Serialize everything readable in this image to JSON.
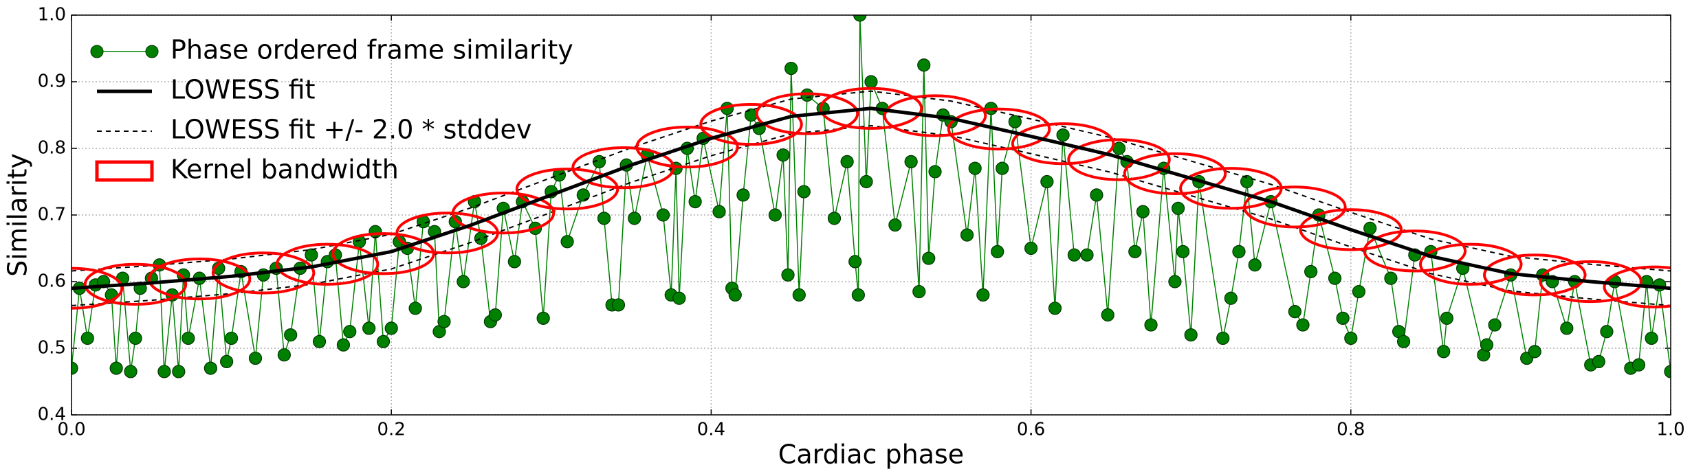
{
  "chart_data": {
    "type": "line",
    "xlabel": "Cardiac phase",
    "ylabel": "Similarity",
    "xlim": [
      0,
      1
    ],
    "ylim": [
      0.4,
      1.0
    ],
    "xticks": [
      {
        "value": 0,
        "label": "0.0"
      },
      0.2,
      0.4,
      0.6,
      0.8,
      {
        "value": 1,
        "label": "1.0"
      }
    ],
    "yticks": [
      0.4,
      0.5,
      0.6,
      0.7,
      0.8,
      0.9,
      {
        "value": 1,
        "label": "1.0"
      }
    ],
    "grid": true,
    "legend": "upper left",
    "series": [
      {
        "name": "Phase ordered frame similarity",
        "color": "#008000",
        "x": [
          0.0,
          0.005,
          0.01,
          0.015,
          0.02,
          0.025,
          0.028,
          0.032,
          0.037,
          0.04,
          0.043,
          0.05,
          0.055,
          0.058,
          0.063,
          0.067,
          0.07,
          0.073,
          0.08,
          0.087,
          0.092,
          0.097,
          0.1,
          0.106,
          0.115,
          0.12,
          0.128,
          0.133,
          0.137,
          0.143,
          0.15,
          0.155,
          0.16,
          0.165,
          0.17,
          0.174,
          0.18,
          0.186,
          0.19,
          0.195,
          0.2,
          0.205,
          0.21,
          0.215,
          0.22,
          0.227,
          0.23,
          0.233,
          0.24,
          0.245,
          0.252,
          0.256,
          0.262,
          0.265,
          0.27,
          0.277,
          0.282,
          0.29,
          0.295,
          0.3,
          0.305,
          0.31,
          0.32,
          0.33,
          0.333,
          0.338,
          0.342,
          0.347,
          0.352,
          0.36,
          0.37,
          0.375,
          0.378,
          0.38,
          0.385,
          0.39,
          0.395,
          0.405,
          0.41,
          0.413,
          0.415,
          0.42,
          0.425,
          0.43,
          0.44,
          0.445,
          0.448,
          0.45,
          0.455,
          0.458,
          0.46,
          0.47,
          0.477,
          0.485,
          0.49,
          0.492,
          0.493,
          0.497,
          0.5,
          0.507,
          0.515,
          0.525,
          0.53,
          0.533,
          0.536,
          0.54,
          0.545,
          0.55,
          0.56,
          0.565,
          0.57,
          0.575,
          0.579,
          0.582,
          0.59,
          0.6,
          0.61,
          0.615,
          0.62,
          0.627,
          0.635,
          0.641,
          0.648,
          0.655,
          0.66,
          0.665,
          0.67,
          0.675,
          0.683,
          0.69,
          0.692,
          0.695,
          0.7,
          0.705,
          0.72,
          0.725,
          0.73,
          0.735,
          0.74,
          0.75,
          0.765,
          0.77,
          0.775,
          0.78,
          0.79,
          0.795,
          0.8,
          0.805,
          0.812,
          0.825,
          0.83,
          0.833,
          0.84,
          0.85,
          0.858,
          0.86,
          0.87,
          0.883,
          0.885,
          0.89,
          0.9,
          0.91,
          0.915,
          0.92,
          0.926,
          0.935,
          0.94,
          0.95,
          0.955,
          0.96,
          0.965,
          0.975,
          0.98,
          0.985,
          0.988,
          0.993,
          1.0
        ],
        "values": [
          0.47,
          0.59,
          0.515,
          0.595,
          0.6,
          0.58,
          0.47,
          0.605,
          0.465,
          0.515,
          0.59,
          0.605,
          0.625,
          0.465,
          0.58,
          0.465,
          0.61,
          0.515,
          0.605,
          0.47,
          0.62,
          0.48,
          0.515,
          0.615,
          0.485,
          0.61,
          0.62,
          0.49,
          0.52,
          0.62,
          0.64,
          0.51,
          0.63,
          0.64,
          0.505,
          0.525,
          0.66,
          0.53,
          0.675,
          0.51,
          0.53,
          0.66,
          0.65,
          0.56,
          0.69,
          0.675,
          0.525,
          0.54,
          0.69,
          0.6,
          0.72,
          0.665,
          0.54,
          0.55,
          0.71,
          0.63,
          0.72,
          0.68,
          0.545,
          0.735,
          0.76,
          0.66,
          0.73,
          0.78,
          0.695,
          0.565,
          0.565,
          0.775,
          0.695,
          0.79,
          0.7,
          0.58,
          0.77,
          0.575,
          0.8,
          0.72,
          0.815,
          0.705,
          0.86,
          0.59,
          0.58,
          0.73,
          0.85,
          0.83,
          0.7,
          0.79,
          0.61,
          0.92,
          0.58,
          0.735,
          0.88,
          0.86,
          0.695,
          0.78,
          0.63,
          0.58,
          1.0,
          0.75,
          0.9,
          0.86,
          0.685,
          0.78,
          0.585,
          0.925,
          0.635,
          0.765,
          0.85,
          0.84,
          0.67,
          0.77,
          0.58,
          0.86,
          0.645,
          0.77,
          0.84,
          0.65,
          0.75,
          0.56,
          0.82,
          0.64,
          0.64,
          0.73,
          0.55,
          0.8,
          0.78,
          0.645,
          0.705,
          0.535,
          0.77,
          0.6,
          0.71,
          0.645,
          0.52,
          0.75,
          0.515,
          0.575,
          0.645,
          0.75,
          0.625,
          0.72,
          0.555,
          0.535,
          0.615,
          0.7,
          0.605,
          0.545,
          0.515,
          0.585,
          0.68,
          0.605,
          0.525,
          0.51,
          0.64,
          0.645,
          0.495,
          0.545,
          0.62,
          0.49,
          0.505,
          0.535,
          0.61,
          0.485,
          0.495,
          0.61,
          0.6,
          0.53,
          0.6,
          0.475,
          0.48,
          0.525,
          0.6,
          0.47,
          0.475,
          0.6,
          0.515,
          0.595,
          0.465
        ]
      },
      {
        "name": "LOWESS fit",
        "color": "#000000",
        "x": [
          0,
          0.05,
          0.1,
          0.15,
          0.2,
          0.25,
          0.3,
          0.35,
          0.4,
          0.45,
          0.5,
          0.55,
          0.6,
          0.65,
          0.7,
          0.75,
          0.8,
          0.85,
          0.9,
          0.95,
          1
        ],
        "values": [
          0.59,
          0.598,
          0.608,
          0.622,
          0.645,
          0.685,
          0.73,
          0.775,
          0.815,
          0.848,
          0.86,
          0.845,
          0.818,
          0.79,
          0.755,
          0.72,
          0.678,
          0.638,
          0.612,
          0.6,
          0.59
        ]
      },
      {
        "name": "LOWESS fit +/- 2.0 * stddev",
        "color": "#000000",
        "x": [
          0,
          0.05,
          0.1,
          0.15,
          0.2,
          0.25,
          0.3,
          0.35,
          0.4,
          0.45,
          0.5,
          0.55,
          0.6,
          0.65,
          0.7,
          0.75,
          0.8,
          0.85,
          0.9,
          0.95,
          1
        ],
        "upper": [
          0.616,
          0.624,
          0.634,
          0.648,
          0.671,
          0.711,
          0.756,
          0.801,
          0.841,
          0.874,
          0.886,
          0.871,
          0.844,
          0.816,
          0.781,
          0.746,
          0.704,
          0.664,
          0.638,
          0.626,
          0.616
        ],
        "lower": [
          0.564,
          0.572,
          0.582,
          0.596,
          0.619,
          0.659,
          0.704,
          0.749,
          0.789,
          0.822,
          0.834,
          0.819,
          0.792,
          0.764,
          0.729,
          0.694,
          0.652,
          0.612,
          0.586,
          0.574,
          0.564
        ]
      },
      {
        "name": "Kernel bandwidth",
        "color": "#ff0000",
        "x": [
          0.0,
          0.04,
          0.08,
          0.12,
          0.16,
          0.195,
          0.235,
          0.27,
          0.31,
          0.345,
          0.385,
          0.425,
          0.46,
          0.5,
          0.54,
          0.58,
          0.62,
          0.655,
          0.69,
          0.725,
          0.765,
          0.8,
          0.84,
          0.875,
          0.915,
          0.95,
          0.99
        ],
        "values": [
          0.59,
          0.596,
          0.604,
          0.613,
          0.626,
          0.642,
          0.673,
          0.703,
          0.739,
          0.771,
          0.802,
          0.836,
          0.852,
          0.86,
          0.849,
          0.829,
          0.807,
          0.783,
          0.762,
          0.74,
          0.712,
          0.678,
          0.646,
          0.626,
          0.61,
          0.6,
          0.592
        ],
        "width": 0.042,
        "height": 0.06
      }
    ]
  }
}
